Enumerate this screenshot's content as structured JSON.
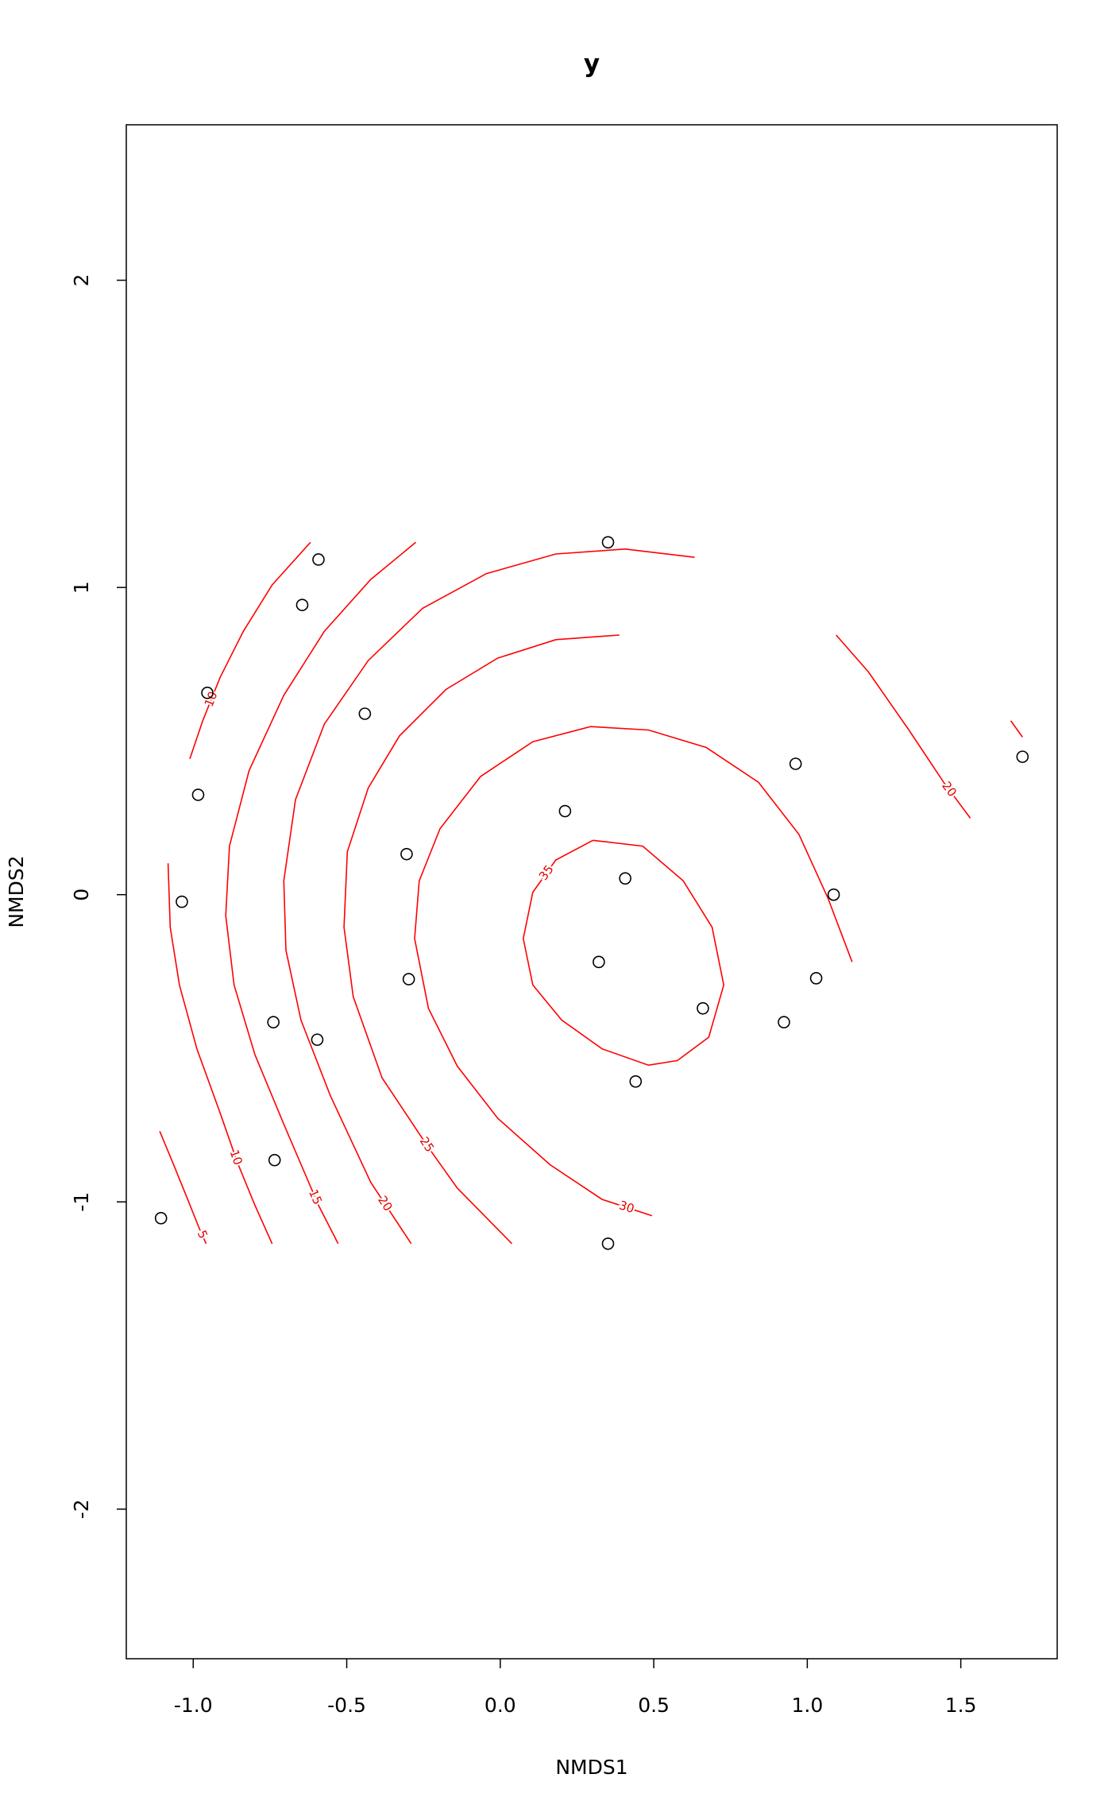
{
  "chart_data": {
    "type": "scatter",
    "title": "y",
    "x_label": "NMDS1",
    "y_label": "NMDS2",
    "xlim": [
      -1.218,
      1.814
    ],
    "ylim": [
      -2.487,
      2.506
    ],
    "xticks": [
      {
        "value": -1,
        "label": "-1.0"
      },
      {
        "value": -0.5,
        "label": "-0.5"
      },
      {
        "value": 0,
        "label": "0.0"
      },
      {
        "value": 0.5,
        "label": "0.5"
      },
      {
        "value": 1,
        "label": "1.0"
      },
      {
        "value": 1.5,
        "label": "1.5"
      }
    ],
    "yticks": [
      -2,
      -1,
      0,
      1,
      2
    ],
    "point_color": "#000000",
    "x": [
      0.351,
      -0.592,
      -0.645,
      -0.954,
      -0.441,
      -0.984,
      0.211,
      0.962,
      1.701,
      -0.305,
      0.407,
      1.086,
      -1.037,
      0.321,
      -0.298,
      1.029,
      0.66,
      0.924,
      -0.739,
      -0.596,
      0.441,
      -0.735,
      -1.105,
      0.351
    ],
    "y": [
      1.147,
      1.091,
      0.943,
      0.657,
      0.589,
      0.325,
      0.272,
      0.426,
      0.449,
      0.132,
      0.053,
      0.0,
      -0.023,
      -0.219,
      -0.275,
      -0.272,
      -0.37,
      -0.415,
      -0.415,
      -0.472,
      -0.608,
      -0.864,
      -1.053,
      -1.136
    ],
    "contour_color": "#ff0000",
    "contours": [
      {
        "level": 5,
        "x": [
          -1.109,
          -1.063,
          -1.018,
          -0.98,
          -0.958
        ],
        "y": [
          -0.77,
          -0.881,
          -0.992,
          -1.087,
          -1.136
        ]
      },
      {
        "level": 10,
        "x": [
          -1.082,
          -1.075,
          -1.045,
          -0.988,
          -0.913,
          -0.856,
          -0.799,
          -0.743
        ],
        "y": [
          0.102,
          -0.106,
          -0.294,
          -0.502,
          -0.709,
          -0.872,
          -1.011,
          -1.136
        ]
      },
      {
        "level": 10,
        "x": [
          -1.011,
          -0.969,
          -0.913,
          -0.837,
          -0.743,
          -0.618
        ],
        "y": [
          0.442,
          0.566,
          0.706,
          0.857,
          1.008,
          1.147
        ]
      },
      {
        "level": 15,
        "x": [
          -0.275,
          -0.422,
          -0.573,
          -0.705,
          -0.818,
          -0.882,
          -0.894,
          -0.867,
          -0.799,
          -0.705,
          -0.592,
          -0.528
        ],
        "y": [
          1.147,
          1.026,
          0.857,
          0.649,
          0.404,
          0.158,
          -0.068,
          -0.294,
          -0.521,
          -0.747,
          -1.011,
          -1.136
        ]
      },
      {
        "level": 20,
        "x": [
          0.633,
          0.407,
          0.181,
          -0.045,
          -0.253,
          -0.43,
          -0.573,
          -0.667,
          -0.705,
          -0.698,
          -0.649,
          -0.554,
          -0.422,
          -0.29
        ],
        "y": [
          1.098,
          1.125,
          1.109,
          1.045,
          0.932,
          0.762,
          0.555,
          0.309,
          0.045,
          -0.181,
          -0.408,
          -0.653,
          -0.936,
          -1.136
        ]
      },
      {
        "level": 25,
        "x": [
          0.388,
          0.181,
          -0.008,
          -0.177,
          -0.328,
          -0.43,
          -0.498,
          -0.509,
          -0.479,
          -0.385,
          -0.234,
          -0.14,
          0.038
        ],
        "y": [
          0.845,
          0.83,
          0.77,
          0.668,
          0.517,
          0.347,
          0.14,
          -0.106,
          -0.332,
          -0.596,
          -0.823,
          -0.955,
          -1.136
        ]
      },
      {
        "level": 30,
        "x": [
          1.146,
          1.067,
          0.973,
          0.841,
          0.671,
          0.483,
          0.294,
          0.106,
          -0.064,
          -0.196,
          -0.264,
          -0.279,
          -0.234,
          -0.14,
          -0.008,
          0.162,
          0.332,
          0.494
        ],
        "y": [
          -0.219,
          -0.011,
          0.196,
          0.366,
          0.479,
          0.536,
          0.547,
          0.498,
          0.385,
          0.215,
          0.045,
          -0.143,
          -0.37,
          -0.558,
          -0.728,
          -0.879,
          -0.992,
          -1.045
        ]
      },
      {
        "level": 35,
        "x": [
          0.302,
          0.464,
          0.596,
          0.69,
          0.728,
          0.679,
          0.577,
          0.483,
          0.332,
          0.2,
          0.106,
          0.075,
          0.106,
          0.181,
          0.302
        ],
        "y": [
          0.177,
          0.158,
          0.045,
          -0.106,
          -0.294,
          -0.464,
          -0.54,
          -0.555,
          -0.502,
          -0.408,
          -0.294,
          -0.143,
          0.008,
          0.113,
          0.177
        ]
      },
      {
        "level": 20,
        "x": [
          1.094,
          1.199,
          1.331,
          1.444,
          1.531
        ],
        "y": [
          0.845,
          0.725,
          0.536,
          0.366,
          0.249
        ]
      },
      {
        "level": 20,
        "x": [
          1.663,
          1.701
        ],
        "y": [
          0.566,
          0.513
        ]
      }
    ]
  }
}
